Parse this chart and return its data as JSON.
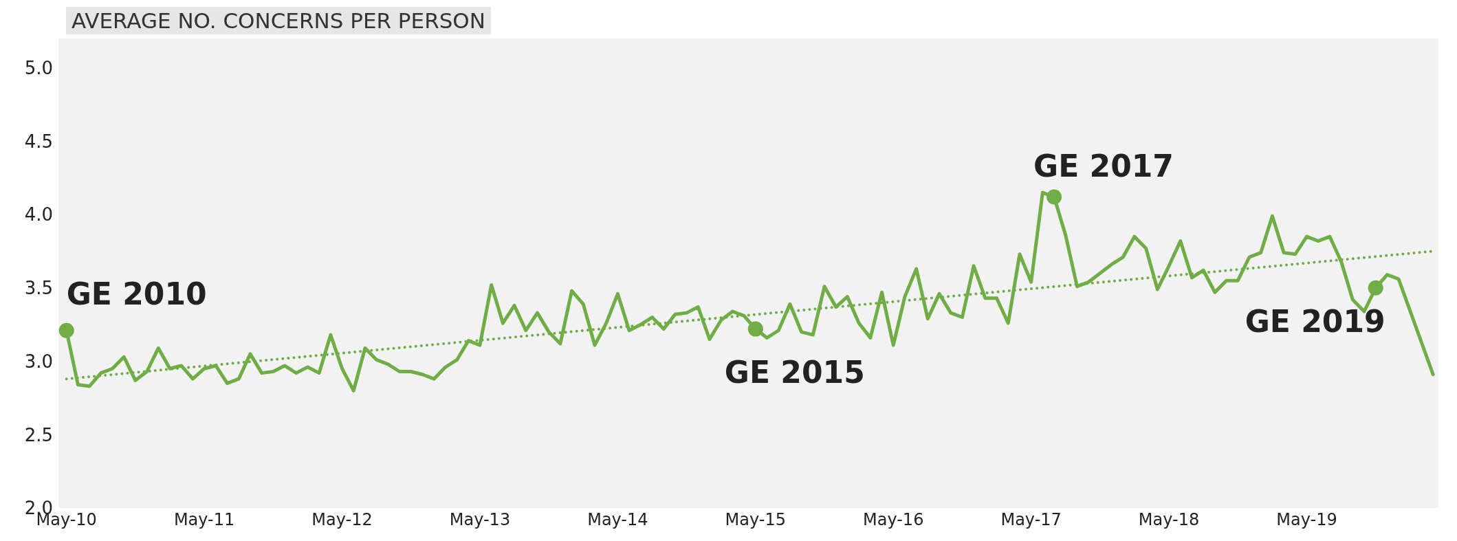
{
  "chart_data": {
    "type": "line",
    "title": "AVERAGE NO. CONCERNS PER PERSON",
    "x": [
      "2010-05",
      "2010-06",
      "2010-07",
      "2010-08",
      "2010-09",
      "2010-10",
      "2010-11",
      "2010-12",
      "2011-01",
      "2011-02",
      "2011-03",
      "2011-04",
      "2011-05",
      "2011-06",
      "2011-07",
      "2011-08",
      "2011-09",
      "2011-10",
      "2011-11",
      "2011-12",
      "2012-01",
      "2012-02",
      "2012-03",
      "2012-04",
      "2012-05",
      "2012-06",
      "2012-07",
      "2012-08",
      "2012-09",
      "2012-10",
      "2012-11",
      "2012-12",
      "2013-01",
      "2013-02",
      "2013-03",
      "2013-04",
      "2013-05",
      "2013-06",
      "2013-07",
      "2013-08",
      "2013-09",
      "2013-10",
      "2013-11",
      "2013-12",
      "2014-01",
      "2014-02",
      "2014-03",
      "2014-04",
      "2014-05",
      "2014-06",
      "2014-07",
      "2014-08",
      "2014-09",
      "2014-10",
      "2014-11",
      "2014-12",
      "2015-01",
      "2015-02",
      "2015-03",
      "2015-04",
      "2015-05",
      "2015-06",
      "2015-07",
      "2015-08",
      "2015-09",
      "2015-10",
      "2015-11",
      "2015-12",
      "2016-01",
      "2016-02",
      "2016-03",
      "2016-04",
      "2016-05",
      "2016-06",
      "2016-07",
      "2016-08",
      "2016-09",
      "2016-10",
      "2016-11",
      "2016-12",
      "2017-01",
      "2017-02",
      "2017-03",
      "2017-04",
      "2017-05",
      "2017-06",
      "2017-07",
      "2017-08",
      "2017-09",
      "2017-10",
      "2017-11",
      "2017-12",
      "2018-01",
      "2018-02",
      "2018-03",
      "2018-04",
      "2018-05",
      "2018-06",
      "2018-07",
      "2018-08",
      "2018-09",
      "2018-10",
      "2018-11",
      "2018-12",
      "2019-01",
      "2019-02",
      "2019-03",
      "2019-04",
      "2019-05",
      "2019-06",
      "2019-07",
      "2019-08",
      "2019-09",
      "2019-10",
      "2019-11",
      "2019-12",
      "2020-01",
      "2020-04"
    ],
    "series": [
      {
        "color": "#70ad47",
        "values": [
          3.21,
          2.84,
          2.83,
          2.92,
          2.95,
          3.03,
          2.87,
          2.93,
          3.09,
          2.95,
          2.97,
          2.88,
          2.95,
          2.97,
          2.85,
          2.88,
          3.05,
          2.92,
          2.93,
          2.97,
          2.92,
          2.96,
          2.92,
          3.18,
          2.95,
          2.8,
          3.09,
          3.01,
          2.98,
          2.93,
          2.93,
          2.91,
          2.88,
          2.96,
          3.01,
          3.14,
          3.11,
          3.52,
          3.26,
          3.38,
          3.21,
          3.33,
          3.2,
          3.12,
          3.48,
          3.39,
          3.11,
          3.26,
          3.46,
          3.21,
          3.25,
          3.3,
          3.22,
          3.32,
          3.33,
          3.37,
          3.15,
          3.28,
          3.34,
          3.31,
          3.22,
          3.16,
          3.21,
          3.39,
          3.2,
          3.18,
          3.51,
          3.37,
          3.44,
          3.26,
          3.16,
          3.47,
          3.11,
          3.44,
          3.63,
          3.29,
          3.46,
          3.33,
          3.3,
          3.65,
          3.43,
          3.43,
          3.26,
          3.73,
          3.54,
          4.15,
          4.12,
          3.86,
          3.51,
          3.54,
          3.6,
          3.66,
          3.71,
          3.85,
          3.77,
          3.49,
          3.65,
          3.82,
          3.57,
          3.62,
          3.47,
          3.55,
          3.55,
          3.71,
          3.74,
          3.99,
          3.74,
          3.73,
          3.85,
          3.82,
          3.85,
          3.68,
          3.42,
          3.34,
          3.5,
          3.59,
          3.56,
          2.91
        ]
      },
      {
        "type": "line",
        "line_style": "dotted",
        "color": "#70ad47",
        "x": [
          "2010-05",
          "2020-04"
        ],
        "values": [
          2.88,
          3.75
        ]
      },
      {
        "type": "scatter",
        "marker": "circle",
        "color": "#70ad47",
        "x": [
          "2010-05",
          "2015-05",
          "2017-07",
          "2019-11"
        ],
        "values": [
          3.21,
          3.22,
          4.12,
          3.5
        ]
      }
    ],
    "xlim": [
      "2010-04-10",
      "2020-04-15"
    ],
    "xticks": [
      {
        "value": "2010-05",
        "label": "May-10"
      },
      {
        "value": "2011-05",
        "label": "May-11"
      },
      {
        "value": "2012-05",
        "label": "May-12"
      },
      {
        "value": "2013-05",
        "label": "May-13"
      },
      {
        "value": "2014-05",
        "label": "May-14"
      },
      {
        "value": "2015-05",
        "label": "May-15"
      },
      {
        "value": "2016-05",
        "label": "May-16"
      },
      {
        "value": "2017-05",
        "label": "May-17"
      },
      {
        "value": "2018-05",
        "label": "May-18"
      },
      {
        "value": "2019-05",
        "label": "May-19"
      }
    ],
    "ylim": [
      2.0,
      5.2
    ],
    "yticks": [
      {
        "value": 2,
        "label": "2.0"
      },
      {
        "value": 2.5,
        "label": "2.5"
      },
      {
        "value": 3,
        "label": "3.0"
      },
      {
        "value": 3.5,
        "label": "3.5"
      },
      {
        "value": 4,
        "label": "4.0"
      },
      {
        "value": 4.5,
        "label": "4.5"
      },
      {
        "value": 5,
        "label": "5.0"
      }
    ],
    "annotations": [
      {
        "text": "GE 2010",
        "x": "2010-05",
        "y": 3.21
      },
      {
        "text": "GE 2015",
        "x": "2015-05",
        "y": 3.22
      },
      {
        "text": "GE 2017",
        "x": "2017-07",
        "y": 4.12
      },
      {
        "text": "GE 2019",
        "x": "2019-11",
        "y": 3.5
      }
    ]
  }
}
